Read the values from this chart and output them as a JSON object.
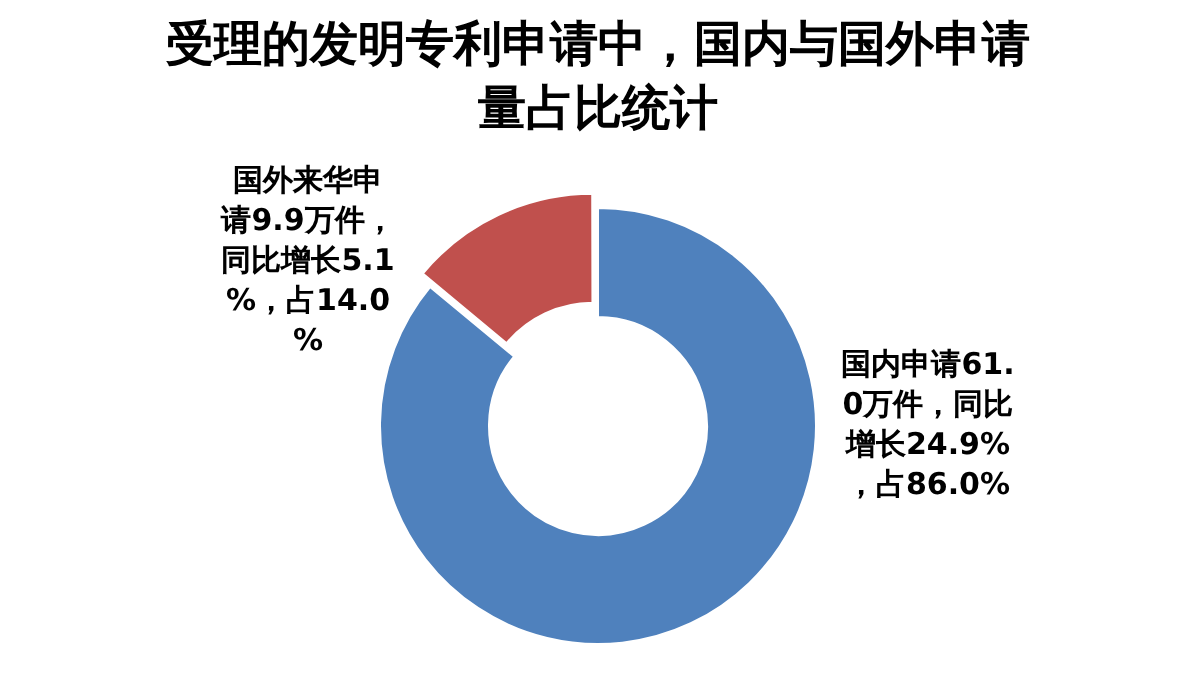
{
  "chart_data": {
    "type": "donut",
    "title": "受理的发明专利申请中，国内与国外申请量占比统计",
    "categories": [
      null,
      null
    ],
    "values": [
      86.0,
      14.0
    ],
    "colors": [
      "#4f81bd",
      "#c0504d"
    ],
    "value_labels": [
      "国内申请61.0万件，同比增长24.9%，占86.0%",
      "国外来华申请9.9万件，同比增长5.1%，占14.0%"
    ],
    "legend": false
  }
}
